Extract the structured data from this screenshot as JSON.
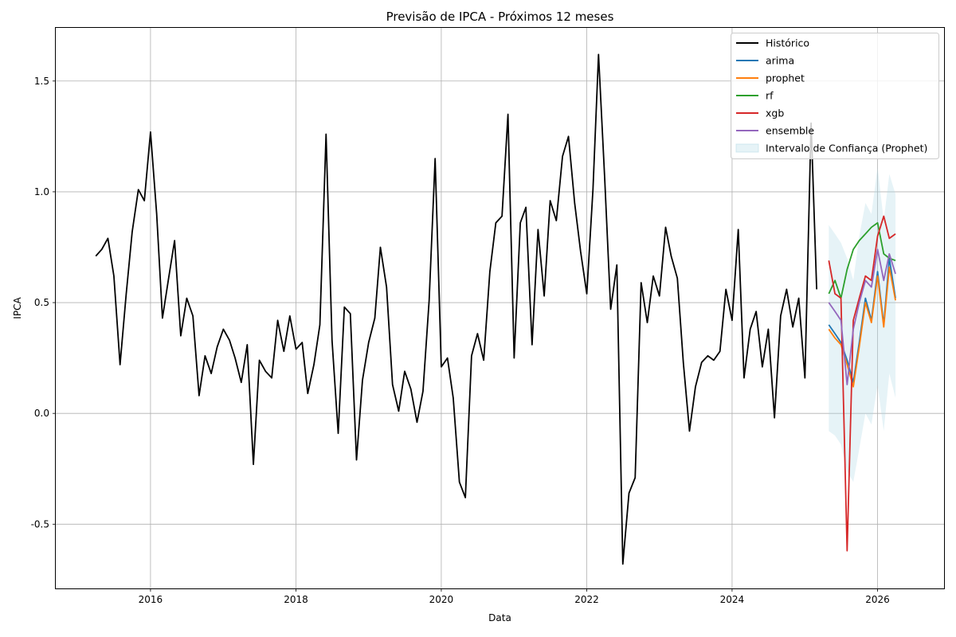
{
  "chart_data": {
    "type": "line",
    "title": "Previsão de IPCA - Próximos 12 meses",
    "xlabel": "Data",
    "ylabel": "IPCA",
    "xlim": [
      "2014-09-12",
      "2026-12-01"
    ],
    "ylim": [
      -0.79,
      1.74
    ],
    "x_ticks": [
      "2016-01-01",
      "2018-01-01",
      "2020-01-01",
      "2022-01-01",
      "2024-01-01",
      "2026-01-01"
    ],
    "x_tick_labels": [
      "2016",
      "2018",
      "2020",
      "2022",
      "2024",
      "2026"
    ],
    "y_ticks": [
      -0.5,
      0.0,
      0.5,
      1.0,
      1.5
    ],
    "y_tick_labels": [
      "-0.5",
      "0.0",
      "0.5",
      "1.0",
      "1.5"
    ],
    "grid": true,
    "legend_position": "top-right",
    "history": {
      "name": "Histórico",
      "color": "#000000",
      "start": "2015-04",
      "values": [
        0.71,
        0.74,
        0.79,
        0.62,
        0.22,
        0.54,
        0.82,
        1.01,
        0.96,
        1.27,
        0.9,
        0.43,
        0.61,
        0.78,
        0.35,
        0.52,
        0.44,
        0.08,
        0.26,
        0.18,
        0.3,
        0.38,
        0.33,
        0.25,
        0.14,
        0.31,
        -0.23,
        0.24,
        0.19,
        0.16,
        0.42,
        0.28,
        0.44,
        0.29,
        0.32,
        0.09,
        0.22,
        0.4,
        1.26,
        0.33,
        -0.09,
        0.48,
        0.45,
        -0.21,
        0.15,
        0.32,
        0.43,
        0.75,
        0.57,
        0.13,
        0.01,
        0.19,
        0.11,
        -0.04,
        0.1,
        0.51,
        1.15,
        0.21,
        0.25,
        0.07,
        -0.31,
        -0.38,
        0.26,
        0.36,
        0.24,
        0.64,
        0.86,
        0.89,
        1.35,
        0.25,
        0.86,
        0.93,
        0.31,
        0.83,
        0.53,
        0.96,
        0.87,
        1.16,
        1.25,
        0.95,
        0.73,
        0.54,
        1.01,
        1.62,
        1.06,
        0.47,
        0.67,
        -0.68,
        -0.36,
        -0.29,
        0.59,
        0.41,
        0.62,
        0.53,
        0.84,
        0.71,
        0.61,
        0.23,
        -0.08,
        0.12,
        0.23,
        0.26,
        0.24,
        0.28,
        0.56,
        0.42,
        0.83,
        0.16,
        0.38,
        0.46,
        0.21,
        0.38,
        -0.02,
        0.44,
        0.56,
        0.39,
        0.52,
        0.16,
        1.31,
        0.56
      ]
    },
    "forecast_dates": [
      "2025-05-01",
      "2025-06-01",
      "2025-07-01",
      "2025-08-01",
      "2025-09-01",
      "2025-10-01",
      "2025-11-01",
      "2025-12-01",
      "2026-01-01",
      "2026-02-01",
      "2026-03-01",
      "2026-04-01"
    ],
    "series": [
      {
        "name": "arima",
        "color": "#1f77b4",
        "values": [
          0.4,
          0.36,
          0.32,
          0.24,
          0.14,
          0.32,
          0.52,
          0.42,
          0.64,
          0.4,
          0.7,
          0.52
        ]
      },
      {
        "name": "prophet",
        "color": "#ff7f0e",
        "values": [
          0.38,
          0.34,
          0.31,
          0.22,
          0.12,
          0.3,
          0.5,
          0.41,
          0.62,
          0.39,
          0.66,
          0.51
        ]
      },
      {
        "name": "rf",
        "color": "#2ca02c",
        "values": [
          0.54,
          0.6,
          0.52,
          0.65,
          0.74,
          0.78,
          0.81,
          0.84,
          0.86,
          0.72,
          0.7,
          0.69
        ]
      },
      {
        "name": "xgb",
        "color": "#d62728",
        "values": [
          0.69,
          0.54,
          0.52,
          -0.62,
          0.42,
          0.52,
          0.62,
          0.6,
          0.8,
          0.89,
          0.79,
          0.81
        ]
      },
      {
        "name": "ensemble",
        "color": "#9467bd",
        "values": [
          0.5,
          0.46,
          0.42,
          0.13,
          0.38,
          0.5,
          0.6,
          0.57,
          0.74,
          0.6,
          0.72,
          0.63
        ]
      }
    ],
    "confidence_band": {
      "name": "Intervalo de Confiança (Prophet)",
      "color": "#add8e6",
      "lower": [
        -0.08,
        -0.1,
        -0.14,
        -0.26,
        -0.31,
        -0.16,
        0.0,
        -0.05,
        0.13,
        -0.08,
        0.18,
        0.07
      ],
      "upper": [
        0.85,
        0.81,
        0.77,
        0.7,
        0.6,
        0.8,
        0.95,
        0.9,
        1.11,
        0.87,
        1.08,
        0.99
      ]
    }
  }
}
